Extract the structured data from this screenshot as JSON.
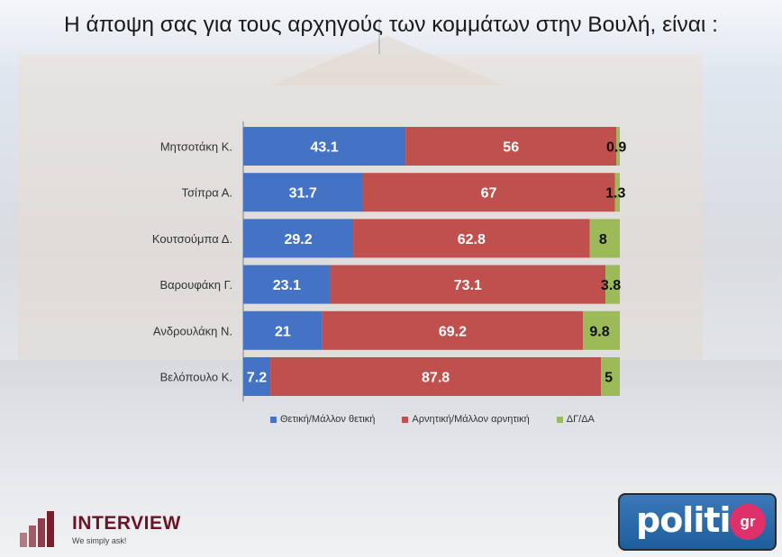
{
  "title": "Η άποψη σας για τους αρχηγούς των κομμάτων στην Βουλή,  είναι :",
  "colors": {
    "positive": "#4472c4",
    "negative": "#c0504d",
    "dk": "#9bbb59"
  },
  "chart_data": {
    "type": "bar",
    "orientation": "horizontal",
    "stacked": true,
    "categories": [
      "Μητσοτάκη Κ.",
      "Τσίπρα Α.",
      "Κουτσούμπα Δ.",
      "Βαρουφάκη Γ.",
      "Ανδρουλάκη Ν.",
      "Βελόπουλο Κ."
    ],
    "series": [
      {
        "name": "Θετική/Μάλλον θετική",
        "values": [
          43.1,
          31.7,
          29.2,
          23.1,
          21,
          7.2
        ]
      },
      {
        "name": "Αρνητική/Μάλλον αρνητική",
        "values": [
          56,
          67,
          62.8,
          73.1,
          69.2,
          87.8
        ]
      },
      {
        "name": "ΔΓ/ΔΑ",
        "values": [
          0.9,
          1.3,
          8,
          3.8,
          9.8,
          5
        ]
      }
    ],
    "xlim": [
      0,
      100
    ],
    "legend_position": "bottom",
    "grid": false
  },
  "logos": {
    "interview_name": "INTERVIEW",
    "interview_tagline": "We simply ask!",
    "politic_name": "politic",
    "politic_suffix": "gr"
  }
}
